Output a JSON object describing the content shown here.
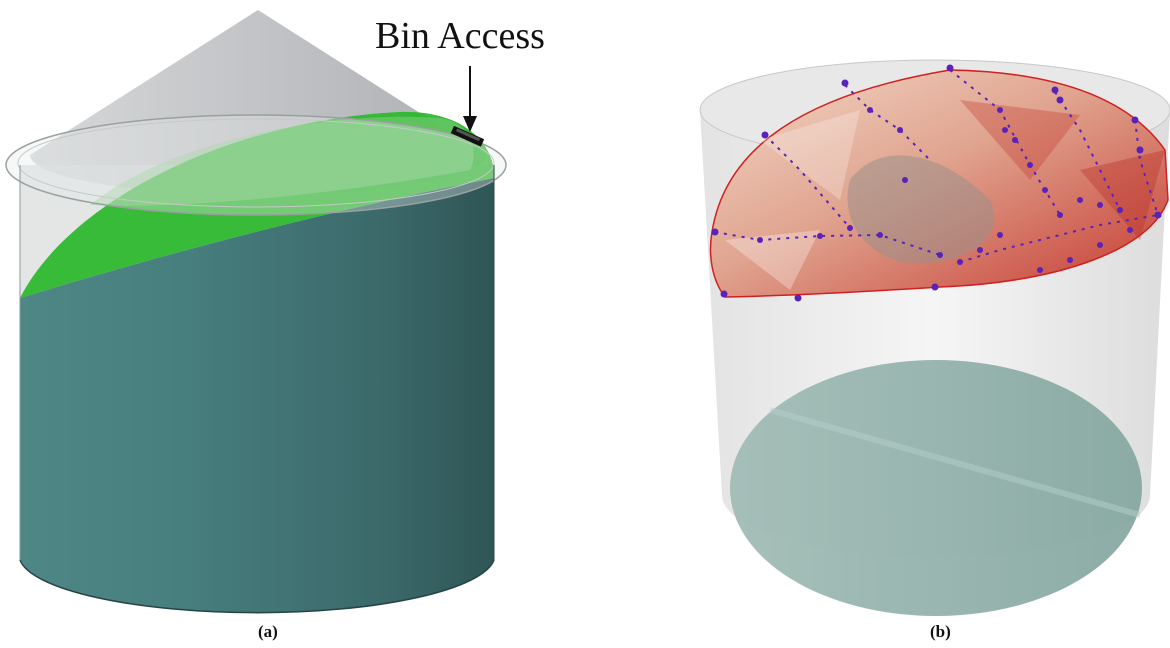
{
  "annotation": {
    "text": "Bin Access"
  },
  "panels": [
    {
      "caption": "(a)"
    },
    {
      "caption": "(b)"
    }
  ],
  "colors": {
    "bin_wall": "#3f6f6f",
    "grain_surface": "#2eb82e",
    "roof": "#b8babd",
    "surface_mesh": "#c9453a",
    "sensor_points": "#5a22b8",
    "floor": "#8fb0aa"
  },
  "icons": {
    "arrow": "down-arrow-icon",
    "hatch": "bin-access-hatch-icon"
  }
}
